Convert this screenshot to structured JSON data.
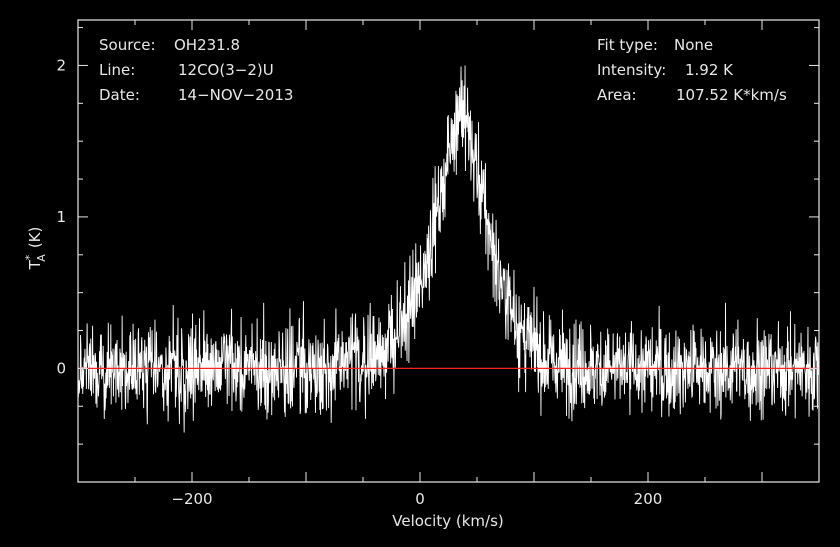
{
  "chart_data": {
    "type": "line",
    "title": "",
    "xlabel": "Velocity (km/s)",
    "ylabel": "T*A (K)",
    "ylabel_parts": {
      "main": "T",
      "sup": "*",
      "sub": "A",
      "unit": "(K)"
    },
    "xlim": [
      -300,
      350
    ],
    "ylim": [
      -0.75,
      2.3
    ],
    "xticks": [
      -200,
      0,
      200
    ],
    "xtick_labels": [
      "−200",
      "0",
      "200"
    ],
    "yticks": [
      0,
      1,
      2
    ],
    "ytick_labels": [
      "0",
      "1",
      "2"
    ],
    "grid": false,
    "baseline": {
      "y": 0,
      "color": "#ff2020"
    },
    "series": [
      {
        "color": "#ffffff",
        "profile": {
          "x": [
            -300,
            -100,
            -50,
            -20,
            0,
            20,
            30,
            36,
            42,
            55,
            70,
            90,
            110,
            150,
            350
          ],
          "y": [
            0.0,
            0.0,
            0.05,
            0.2,
            0.55,
            1.2,
            1.6,
            1.75,
            1.6,
            1.1,
            0.6,
            0.2,
            0.05,
            0.0,
            0.0
          ]
        },
        "noise_rms_K": 0.15,
        "channel_width_kms": 0.32
      }
    ],
    "annotations": {
      "left": [
        {
          "key": "Source:",
          "value": "OH231.8"
        },
        {
          "key": "Line:",
          "value": "12CO(3−2)U"
        },
        {
          "key": "Date:",
          "value": "14−NOV−2013"
        }
      ],
      "right": [
        {
          "key": "Fit type:",
          "value": "None"
        },
        {
          "key": "Intensity:",
          "value": "1.92 K"
        },
        {
          "key": "Area:",
          "value": "107.52 K*km/s"
        }
      ]
    }
  }
}
